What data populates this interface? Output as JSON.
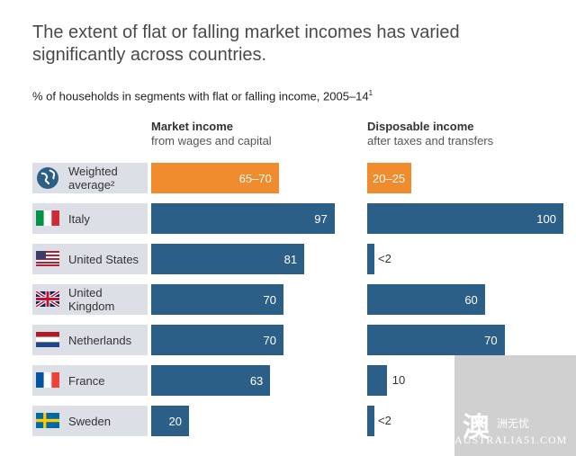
{
  "title": "The extent of flat or falling market incomes has varied significantly across countries.",
  "subtitle": "% of households in segments with flat or falling income, 2005–14",
  "subtitle_sup": "1",
  "columns": {
    "market": {
      "heading": "Market income",
      "subheading": "from wages and capital"
    },
    "disposable": {
      "heading": "Disposable income",
      "subheading": "after taxes and transfers"
    }
  },
  "chart_data": {
    "type": "bar",
    "title": "% of households in segments with flat or falling income, 2005–14",
    "categories": [
      "Weighted average",
      "Italy",
      "United States",
      "United Kingdom",
      "Netherlands",
      "France",
      "Sweden"
    ],
    "category_labels": [
      "Weighted average²",
      "Italy",
      "United States",
      "United Kingdom",
      "Netherlands",
      "France",
      "Sweden"
    ],
    "flags": [
      "globe-icon",
      "italy-flag-icon",
      "us-flag-icon",
      "uk-flag-icon",
      "netherlands-flag-icon",
      "france-flag-icon",
      "sweden-flag-icon"
    ],
    "series": [
      {
        "name": "Market income",
        "values": [
          67.5,
          97,
          81,
          70,
          70,
          63,
          20
        ],
        "labels": [
          "65–70",
          "97",
          "81",
          "70",
          "70",
          "63",
          "20"
        ]
      },
      {
        "name": "Disposable income",
        "values": [
          22.5,
          100,
          2,
          60,
          70,
          10,
          2
        ],
        "labels": [
          "20–25",
          "100",
          "<2",
          "60",
          "70",
          "10",
          "<2"
        ]
      }
    ],
    "colors": {
      "highlight": "#f08c2e",
      "bar": "#2c5f87",
      "label_bg": "#dcdfe6"
    },
    "ylim": [
      0,
      100
    ]
  },
  "watermark": {
    "glyph": "澳",
    "text_cn": "洲无忧",
    "text_en": "AUSTRALIA51.COM"
  }
}
